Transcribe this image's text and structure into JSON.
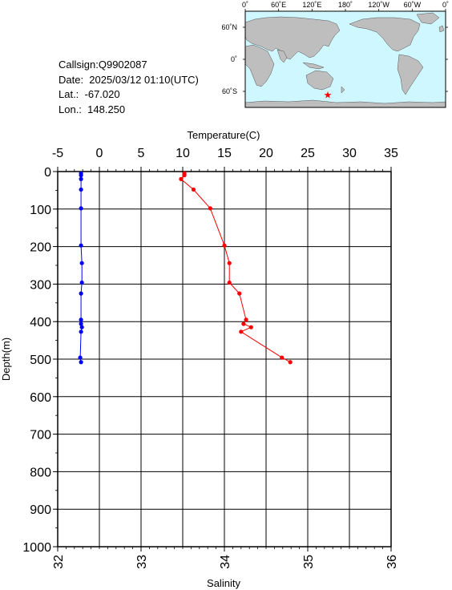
{
  "info": {
    "callsign_text": "Callsign:Q9902087",
    "date_text": "Date:  2025/03/12 01:10(UTC)",
    "lat_text": "Lat.:  -67.020",
    "lon_text": "Lon.:  148.250"
  },
  "map": {
    "top_labels": [
      "0˚",
      "60˚E",
      "120˚E",
      "180˚",
      "120˚W",
      "60˚W",
      "0˚"
    ],
    "side_labels": [
      "60˚N",
      "0˚",
      "60˚S"
    ],
    "ocean_color": "#cff7ff",
    "land_color": "#bebebe",
    "marker": {
      "symbol": "star",
      "lon": 148.25,
      "lat": -67.02,
      "color": "#ff0000"
    }
  },
  "chart_data": {
    "type": "line",
    "title": "",
    "ylabel": "Depth(m)",
    "ylim": [
      0,
      1000
    ],
    "y_ticks": [
      "0",
      "100",
      "200",
      "300",
      "400",
      "500",
      "600",
      "700",
      "800",
      "900",
      "1000"
    ],
    "y_inverted": true,
    "grid": true,
    "top_axis": {
      "label": "Temperature(C)",
      "range": [
        -5,
        35
      ],
      "ticks": [
        "-5",
        "0",
        "5",
        "10",
        "15",
        "20",
        "25",
        "30",
        "35"
      ]
    },
    "bottom_axis": {
      "label": "Salinity",
      "range": [
        32,
        36
      ],
      "ticks": [
        "32",
        "33",
        "34",
        "35",
        "36"
      ]
    },
    "series": [
      {
        "axis": "top",
        "color": "#ff0000",
        "points": [
          {
            "x": 10.2,
            "y": 5
          },
          {
            "x": 10.2,
            "y": 10
          },
          {
            "x": 9.8,
            "y": 20
          },
          {
            "x": 11.3,
            "y": 48
          },
          {
            "x": 13.3,
            "y": 98
          },
          {
            "x": 15.0,
            "y": 197
          },
          {
            "x": 15.6,
            "y": 244
          },
          {
            "x": 15.6,
            "y": 296
          },
          {
            "x": 16.8,
            "y": 325
          },
          {
            "x": 17.6,
            "y": 395
          },
          {
            "x": 17.3,
            "y": 406
          },
          {
            "x": 18.2,
            "y": 415
          },
          {
            "x": 17.0,
            "y": 427
          },
          {
            "x": 21.9,
            "y": 496
          },
          {
            "x": 22.9,
            "y": 508
          }
        ]
      },
      {
        "axis": "bottom",
        "color": "#0000ff",
        "points": [
          {
            "x": 32.28,
            "y": 5
          },
          {
            "x": 32.28,
            "y": 10
          },
          {
            "x": 32.28,
            "y": 20
          },
          {
            "x": 32.28,
            "y": 48
          },
          {
            "x": 32.28,
            "y": 98
          },
          {
            "x": 32.28,
            "y": 197
          },
          {
            "x": 32.29,
            "y": 244
          },
          {
            "x": 32.29,
            "y": 296
          },
          {
            "x": 32.28,
            "y": 325
          },
          {
            "x": 32.28,
            "y": 395
          },
          {
            "x": 32.28,
            "y": 406
          },
          {
            "x": 32.29,
            "y": 415
          },
          {
            "x": 32.28,
            "y": 427
          },
          {
            "x": 32.27,
            "y": 496
          },
          {
            "x": 32.28,
            "y": 508
          }
        ]
      }
    ]
  }
}
